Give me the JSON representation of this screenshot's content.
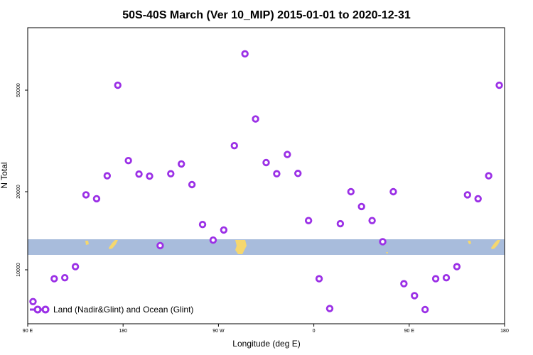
{
  "chart_data": {
    "type": "scatter",
    "title": "50S-40S March (Ver 10_MIP)   2015-01-01 to 2020-12-31",
    "xlabel": "Longitude (deg E)",
    "ylabel": "N Total",
    "x_ticks": [
      {
        "value": 90,
        "label": "90 E"
      },
      {
        "value": 180,
        "label": "180"
      },
      {
        "value": 270,
        "label": "90 W"
      },
      {
        "value": 360,
        "label": "0"
      },
      {
        "value": 450,
        "label": "90 E"
      },
      {
        "value": 540,
        "label": "180"
      }
    ],
    "y_ticks": [
      {
        "value": 10000,
        "label": "10000"
      },
      {
        "value": 20000,
        "label": "20000"
      },
      {
        "value": 50000,
        "label": "50000"
      }
    ],
    "xlim": [
      90,
      540
    ],
    "grid": false,
    "legend": {
      "position": "bottom-left",
      "label": "Land (Nadir&Glint) and Ocean (Glint)"
    },
    "colors": {
      "marker": "#9b30e6",
      "band": "#a8bcdc",
      "land": "#f5d76e"
    },
    "series": [
      {
        "name": "Land (Nadir&Glint) and Ocean (Glint)",
        "x": [
          95,
          115,
          125,
          135,
          145,
          155,
          165,
          175,
          185,
          195,
          205,
          215,
          225,
          235,
          245,
          255,
          265,
          275,
          285,
          295,
          305,
          315,
          325,
          335,
          345,
          355,
          365,
          375,
          385,
          395,
          405,
          415,
          425,
          435,
          445,
          455,
          465,
          475,
          485,
          495,
          505,
          515,
          525,
          535
        ],
        "y": [
          6800,
          9100,
          9200,
          10400,
          19600,
          19100,
          24700,
          51500,
          29200,
          25200,
          24600,
          13100,
          25300,
          28200,
          22100,
          15800,
          13800,
          15100,
          33600,
          61000,
          41500,
          28600,
          25300,
          31000,
          25400,
          16300,
          9100,
          6100,
          15900,
          20000,
          18100,
          16300,
          13600,
          20000,
          8600,
          7400,
          6000,
          9100,
          9200,
          10400,
          19600,
          19100,
          24700,
          51500
        ]
      }
    ]
  }
}
